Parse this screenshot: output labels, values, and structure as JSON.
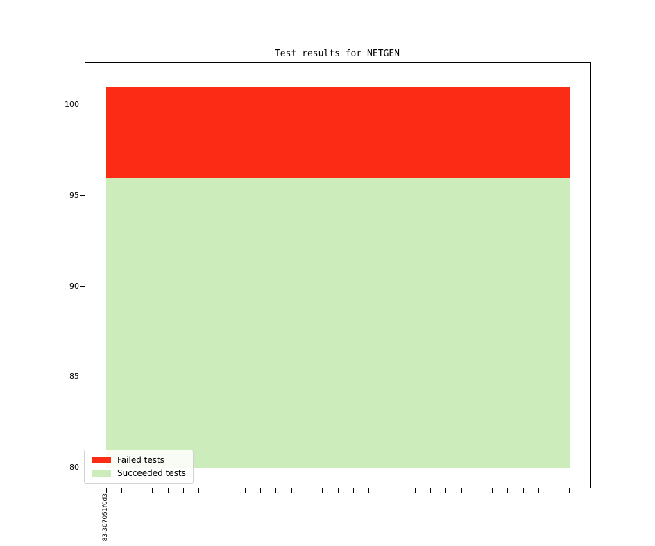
{
  "chart_data": {
    "type": "area",
    "stacked": true,
    "title": "Test results for NETGEN",
    "series": [
      {
        "name": "Failed tests",
        "values": [
          5
        ],
        "color": "#fc2b16"
      },
      {
        "name": "Succeeded tests",
        "values": [
          96
        ],
        "color": "#cdecbc"
      }
    ],
    "values_constant_across_x": true,
    "baseline": 80,
    "succeeded_top": 96,
    "stack_total_top": 101,
    "x_tick_labels": [
      "83-307051f0d3"
    ],
    "num_x_ticks": 31,
    "xlim": [
      -1.35,
      31.35
    ],
    "ylim": [
      78.9,
      102.3
    ],
    "yticks": [
      80,
      85,
      90,
      95,
      100
    ],
    "grid": false,
    "legend_position": "lower left",
    "legend_labels": [
      "Failed tests",
      "Succeeded tests"
    ]
  }
}
